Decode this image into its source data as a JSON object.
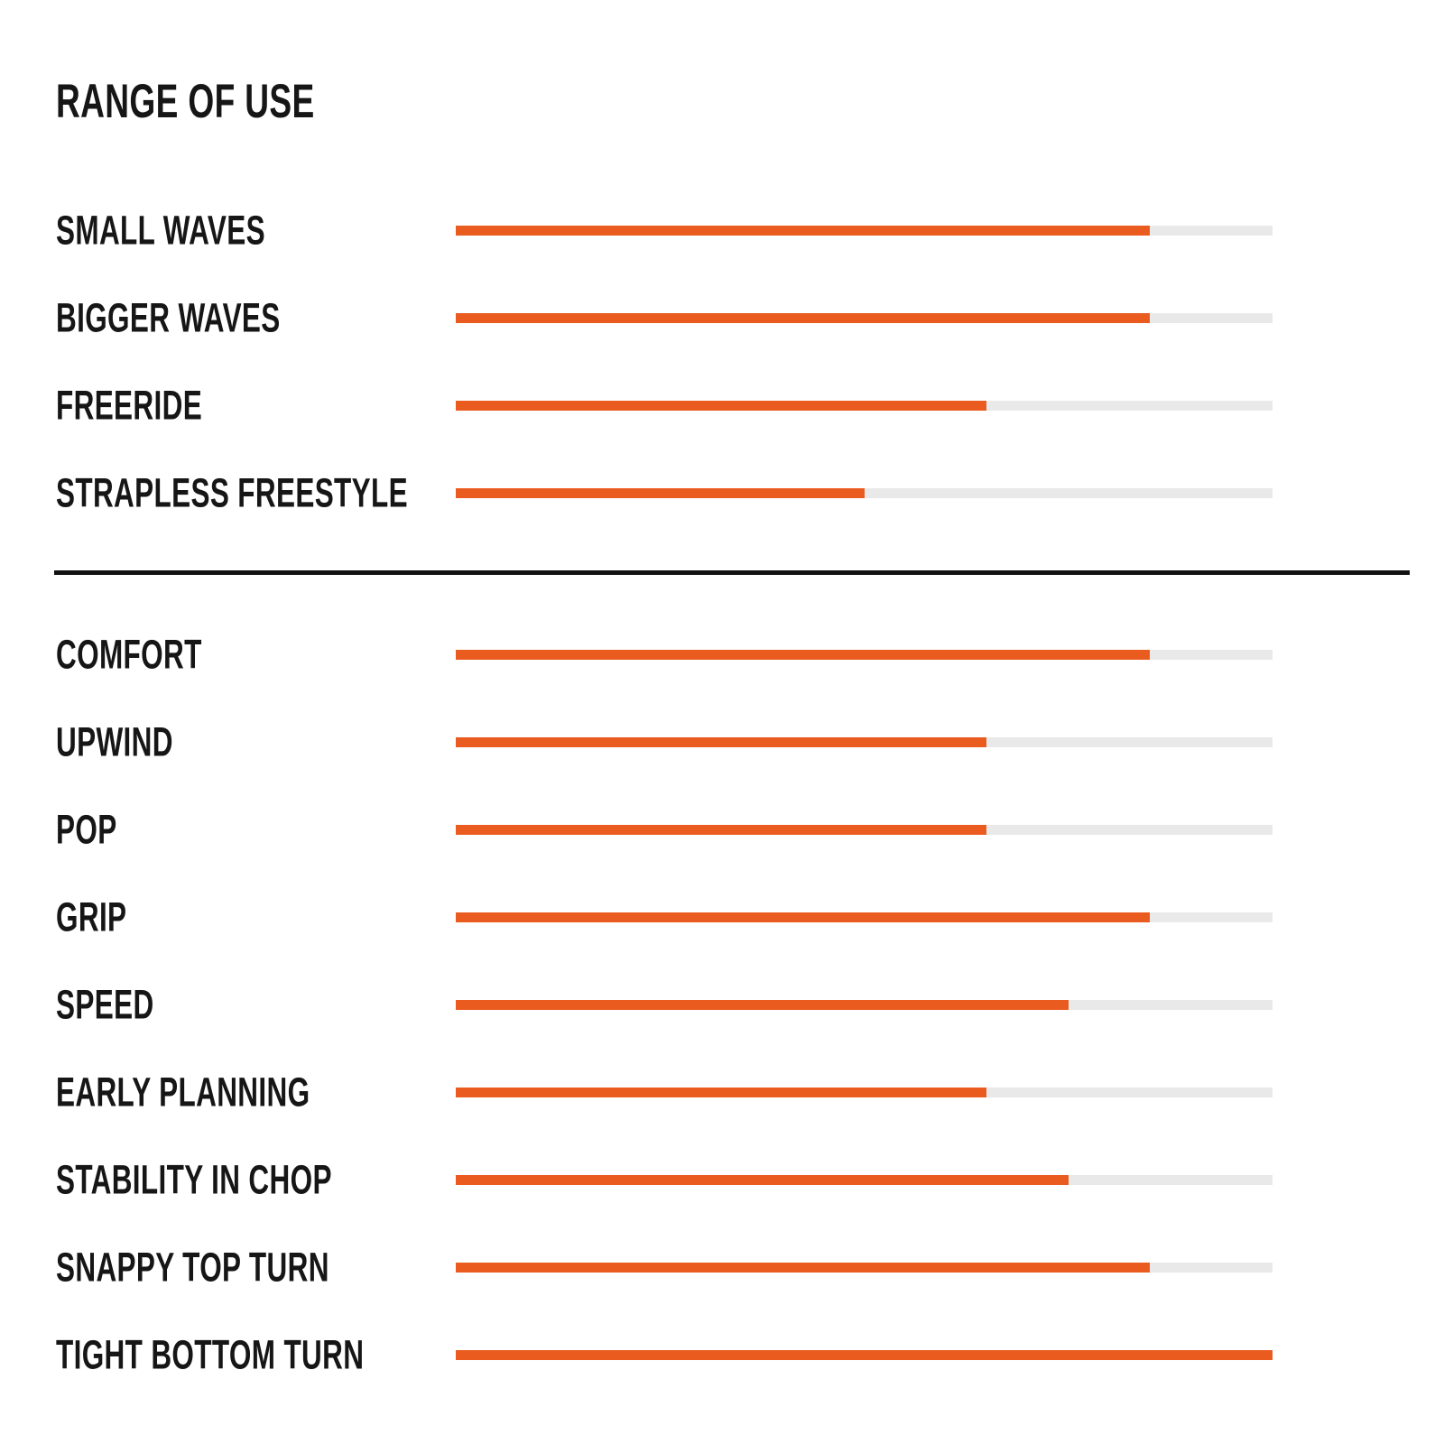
{
  "title": "RANGE OF USE",
  "chart_data": {
    "type": "bar",
    "orientation": "horizontal",
    "value_scale": {
      "min": 0,
      "max": 100,
      "unit": "percent-of-track"
    },
    "grid": false,
    "legend": "none",
    "colors": {
      "fill": "#ea5b1f",
      "track": "#e9e9e9",
      "text": "#161616",
      "divider": "#111111",
      "background": "#ffffff"
    },
    "sections": [
      {
        "name": "range-of-use",
        "rows": [
          {
            "label": "SMALL WAVES",
            "value": 85
          },
          {
            "label": "BIGGER WAVES",
            "value": 85
          },
          {
            "label": "FREERIDE",
            "value": 65
          },
          {
            "label": "STRAPLESS FREESTYLE",
            "value": 50
          }
        ]
      },
      {
        "name": "performance",
        "rows": [
          {
            "label": "COMFORT",
            "value": 85
          },
          {
            "label": "UPWIND",
            "value": 65
          },
          {
            "label": "POP",
            "value": 65
          },
          {
            "label": "GRIP",
            "value": 85
          },
          {
            "label": "SPEED",
            "value": 75
          },
          {
            "label": "EARLY PLANNING",
            "value": 65
          },
          {
            "label": "STABILITY IN CHOP",
            "value": 75
          },
          {
            "label": "SNAPPY TOP TURN",
            "value": 85
          },
          {
            "label": "TIGHT BOTTOM TURN",
            "value": 100
          }
        ]
      }
    ]
  }
}
